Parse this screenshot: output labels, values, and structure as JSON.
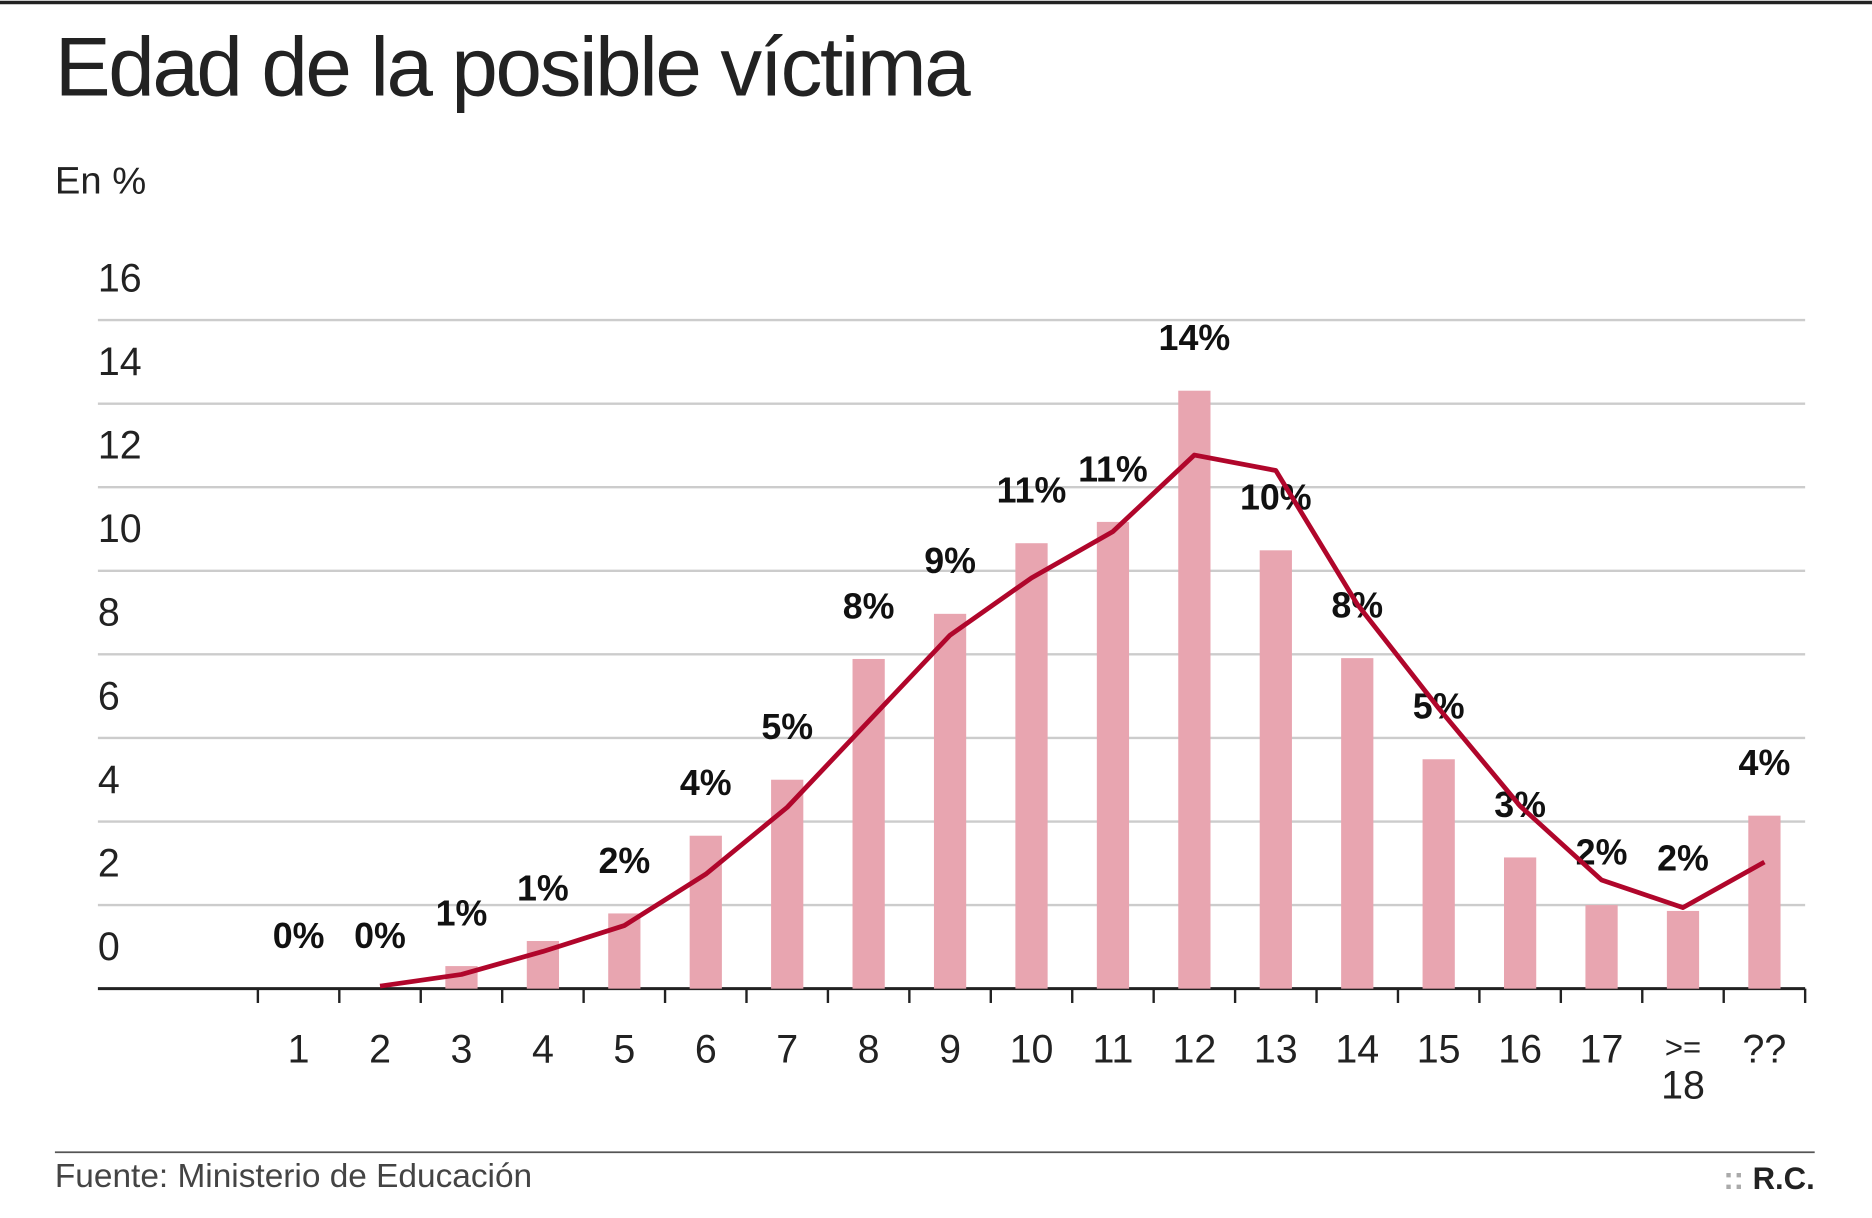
{
  "chart_data": {
    "type": "bar",
    "title": "Edad de la posible víctima",
    "subtitle": "En %",
    "source": "Fuente: Ministerio de Educación",
    "credit_mark": "::",
    "credit": "R.C.",
    "categories": [
      "1",
      "2",
      "3",
      "4",
      "5",
      "6",
      "7",
      "8",
      "9",
      "10",
      "11",
      "12",
      "13",
      "14",
      "15",
      "16",
      "17",
      ">= 18",
      "??"
    ],
    "series": [
      {
        "type": "bar",
        "color": "#e8a5b0",
        "values": [
          0,
          0,
          0.54,
          1.14,
          1.8,
          3.66,
          5.0,
          7.89,
          8.97,
          10.66,
          11.17,
          14.31,
          10.49,
          7.91,
          5.49,
          3.14,
          2.0,
          1.86,
          4.14
        ],
        "value_labels": [
          "0%",
          "0%",
          "1%",
          "1%",
          "2%",
          "4%",
          "5%",
          "8%",
          "9%",
          "11%",
          "11%",
          "14%",
          "10%",
          "8%",
          "5%",
          "3%",
          "2%",
          "2%",
          "4%"
        ]
      },
      {
        "type": "line",
        "color": "#b0062b",
        "values": [
          null,
          0.06,
          0.34,
          0.89,
          1.51,
          2.74,
          4.34,
          6.4,
          8.46,
          9.83,
          10.94,
          12.77,
          12.4,
          9.2,
          6.71,
          4.37,
          2.6,
          1.94,
          3.03
        ]
      }
    ],
    "ylim": [
      0,
      16
    ],
    "yticks": [
      0,
      2,
      4,
      6,
      8,
      10,
      12,
      14,
      16
    ],
    "grid": true
  }
}
